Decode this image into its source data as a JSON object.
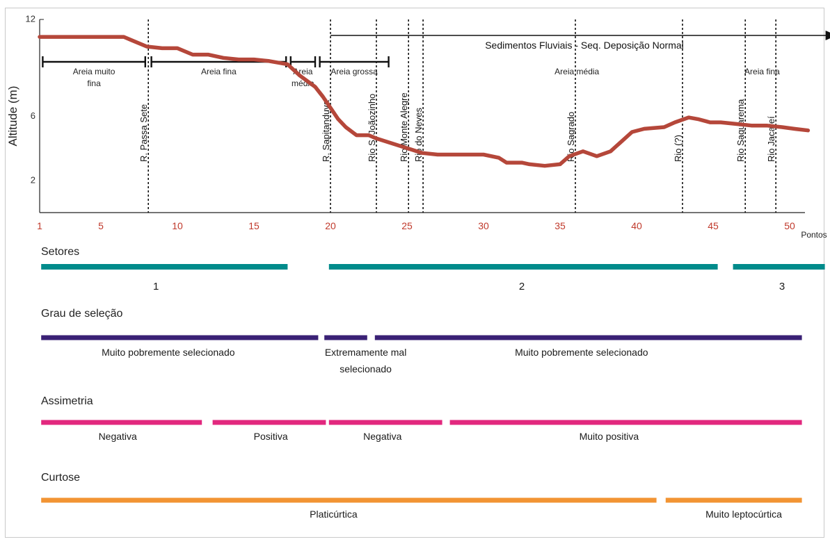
{
  "chart_data": {
    "type": "line",
    "ylabel": "Altitude (m)",
    "xlabel": "Pontos",
    "xlim": [
      1,
      51.5
    ],
    "ylim": [
      0,
      12
    ],
    "x_ticks": [
      1,
      5,
      10,
      15,
      20,
      25,
      30,
      35,
      40,
      45,
      50
    ],
    "y_ticks": [
      2,
      6,
      12
    ],
    "series": [
      {
        "color": "#b5473a",
        "points": [
          [
            1,
            10.9
          ],
          [
            2,
            10.9
          ],
          [
            3,
            10.9
          ],
          [
            4,
            10.9
          ],
          [
            5,
            10.9
          ],
          [
            6.5,
            10.9
          ],
          [
            7,
            10.7
          ],
          [
            8,
            10.3
          ],
          [
            9,
            10.2
          ],
          [
            10,
            10.2
          ],
          [
            11,
            9.8
          ],
          [
            12,
            9.8
          ],
          [
            13,
            9.6
          ],
          [
            14,
            9.5
          ],
          [
            15,
            9.5
          ],
          [
            16,
            9.4
          ],
          [
            17.2,
            9.2
          ],
          [
            18,
            8.5
          ],
          [
            19,
            7.8
          ],
          [
            19.5,
            7.2
          ],
          [
            20,
            6.5
          ],
          [
            20.5,
            5.8
          ],
          [
            21,
            5.3
          ],
          [
            21.7,
            4.8
          ],
          [
            22.5,
            4.8
          ],
          [
            23,
            4.6
          ],
          [
            24,
            4.3
          ],
          [
            25,
            4.0
          ],
          [
            26,
            3.7
          ],
          [
            27,
            3.6
          ],
          [
            28,
            3.6
          ],
          [
            29,
            3.6
          ],
          [
            30,
            3.6
          ],
          [
            31,
            3.4
          ],
          [
            31.5,
            3.1
          ],
          [
            32.5,
            3.1
          ],
          [
            33,
            3.0
          ],
          [
            34,
            2.9
          ],
          [
            35,
            3.0
          ],
          [
            35.6,
            3.5
          ],
          [
            36.5,
            3.8
          ],
          [
            37.4,
            3.5
          ],
          [
            38.3,
            3.8
          ],
          [
            39,
            4.4
          ],
          [
            39.7,
            5.0
          ],
          [
            40.5,
            5.2
          ],
          [
            41.8,
            5.3
          ],
          [
            42.5,
            5.6
          ],
          [
            43.4,
            5.9
          ],
          [
            44,
            5.8
          ],
          [
            44.8,
            5.6
          ],
          [
            45.5,
            5.6
          ],
          [
            46.5,
            5.5
          ],
          [
            47.5,
            5.4
          ],
          [
            48.5,
            5.4
          ],
          [
            49.5,
            5.3
          ],
          [
            50.3,
            5.2
          ],
          [
            51.2,
            5.1
          ]
        ]
      }
    ],
    "rivers": [
      {
        "x": 8.1,
        "label": "R. Passa Sete"
      },
      {
        "x": 20,
        "label": "R. Sapitanduva"
      },
      {
        "x": 23,
        "label": "Rio S. Joãozinho"
      },
      {
        "x": 25.1,
        "label": "Rio Monte Alegre"
      },
      {
        "x": 26.05,
        "label": "Rio do Neves"
      },
      {
        "x": 36,
        "label": "Rio Sagrado"
      },
      {
        "x": 43,
        "label": "Rio (?)"
      },
      {
        "x": 47.1,
        "label": "Rio Saquarema"
      },
      {
        "x": 49.1,
        "label": "Rio Jacareí"
      }
    ],
    "granulometry_bars": [
      {
        "x1": 1.2,
        "x2": 7.9,
        "label1": "Areia muito",
        "label2": "fina"
      },
      {
        "x1": 8.3,
        "x2": 17.1,
        "label1": "Areia fina",
        "label2": ""
      },
      {
        "x1": 17.4,
        "x2": 19.0,
        "label1": "Areia",
        "label2": "média"
      },
      {
        "x1": 19.3,
        "x2": 23.8,
        "label1": "Areia grossa",
        "label2": ""
      }
    ],
    "granulometry_text": [
      {
        "x": 36.1,
        "label": "Areia média"
      },
      {
        "x": 48.2,
        "label": "Areia fina"
      }
    ],
    "sequence_arrow": {
      "x1": 20,
      "x2": 52.8,
      "label": "Sedimentos Fluviais - Seq. Deposição Normal"
    }
  },
  "bands": [
    {
      "title": "Setores",
      "color": "#008b8b",
      "segments": [
        {
          "x1": 1.1,
          "x2": 17.2,
          "label": "1",
          "label_x": 8.6
        },
        {
          "x1": 19.9,
          "x2": 45.3,
          "label": "2",
          "label_x": 32.5
        },
        {
          "x1": 46.3,
          "x2": 52.3,
          "label": "3",
          "label_x": 49.5
        }
      ]
    },
    {
      "title": "Grau de seleção",
      "color": "#3a2175",
      "segments": [
        {
          "x1": 1.1,
          "x2": 19.2,
          "label": "Muito pobremente selecionado",
          "label_x": 9.4
        },
        {
          "x1": 19.6,
          "x2": 22.4,
          "label": "Extremamente mal",
          "label2": "selecionado",
          "label_x": 22.3
        },
        {
          "x1": 22.9,
          "x2": 50.8,
          "label": "Muito pobremente selecionado",
          "label_x": 36.4
        }
      ]
    },
    {
      "title": "Assimetria",
      "color": "#e2287e",
      "segments": [
        {
          "x1": 1.1,
          "x2": 11.6,
          "label": "Negativa",
          "label_x": 6.1
        },
        {
          "x1": 12.3,
          "x2": 19.7,
          "label": "Positiva",
          "label_x": 16.1
        },
        {
          "x1": 19.9,
          "x2": 27.3,
          "label": "Negativa",
          "label_x": 23.4
        },
        {
          "x1": 27.8,
          "x2": 50.8,
          "label": "Muito positiva",
          "label_x": 38.2
        }
      ]
    },
    {
      "title": "Curtose",
      "color": "#f29433",
      "segments": [
        {
          "x1": 1.1,
          "x2": 41.3,
          "label": "Platicúrtica",
          "label_x": 20.2
        },
        {
          "x1": 41.9,
          "x2": 50.8,
          "label": "Muito leptocúrtica",
          "label_x": 47.0
        }
      ]
    }
  ]
}
